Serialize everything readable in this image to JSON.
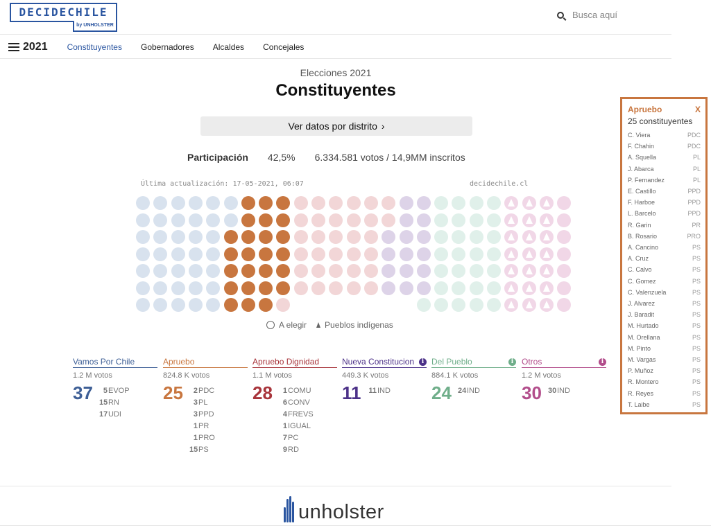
{
  "header": {
    "logo_main": "DECIDECHILE",
    "logo_sub": "by UNHOLSTER",
    "search_placeholder": "Busca aquí"
  },
  "nav": {
    "year": "2021",
    "tabs": [
      {
        "label": "Constituyentes",
        "active": true
      },
      {
        "label": "Gobernadores",
        "active": false
      },
      {
        "label": "Alcaldes",
        "active": false
      },
      {
        "label": "Concejales",
        "active": false
      }
    ]
  },
  "main": {
    "subtitle": "Elecciones 2021",
    "title": "Constituyentes",
    "district_button": "Ver datos por distrito",
    "participation_label": "Participación",
    "participation_pct": "42,5%",
    "participation_votes": "6.334.581 votos / 14,9MM inscritos",
    "updated": "Última actualización: 17-05-2021, 06:07",
    "site": "decidechile.cl",
    "legend_elect": "A elegir",
    "legend_indigenous": "Pueblos indígenas"
  },
  "colors": {
    "vamos_light": "#d8e2ee",
    "apruebo": "#c8763f",
    "dignidad_light": "#f2d6d7",
    "nueva_light": "#ddd3e8",
    "pueblo_light": "#e0f0ea",
    "otros_light": "#f1d7e7",
    "vamos": "#3e5f96",
    "apruebo_dark": "#c8763f",
    "dignidad": "#a8343b",
    "nueva": "#4c3188",
    "pueblo": "#6fae8a",
    "otros": "#b24d8b"
  },
  "coalitions": [
    {
      "name": "Vamos Por Chile",
      "votes": "1.2 M votos",
      "seats": "37",
      "color": "#3e5f96",
      "info": false,
      "parties": [
        {
          "n": "5",
          "p": "EVOP"
        },
        {
          "n": "15",
          "p": "RN"
        },
        {
          "n": "17",
          "p": "UDI"
        }
      ]
    },
    {
      "name": "Apruebo",
      "votes": "824.8 K votos",
      "seats": "25",
      "color": "#c8763f",
      "info": false,
      "parties": [
        {
          "n": "2",
          "p": "PDC"
        },
        {
          "n": "3",
          "p": "PL"
        },
        {
          "n": "3",
          "p": "PPD"
        },
        {
          "n": "1",
          "p": "PR"
        },
        {
          "n": "1",
          "p": "PRO"
        },
        {
          "n": "15",
          "p": "PS"
        }
      ]
    },
    {
      "name": "Apruebo Dignidad",
      "votes": "1.1 M votos",
      "seats": "28",
      "color": "#a8343b",
      "info": false,
      "parties": [
        {
          "n": "1",
          "p": "COMU"
        },
        {
          "n": "6",
          "p": "CONV"
        },
        {
          "n": "4",
          "p": "FREVS"
        },
        {
          "n": "1",
          "p": "IGUAL"
        },
        {
          "n": "7",
          "p": "PC"
        },
        {
          "n": "9",
          "p": "RD"
        }
      ]
    },
    {
      "name": "Nueva Constitucion",
      "votes": "449.3 K votos",
      "seats": "11",
      "color": "#4c3188",
      "info": true,
      "parties": [
        {
          "n": "11",
          "p": "IND"
        }
      ]
    },
    {
      "name": "Del Pueblo",
      "votes": "884.1 K votos",
      "seats": "24",
      "color": "#6fae8a",
      "info": true,
      "parties": [
        {
          "n": "24",
          "p": "IND"
        }
      ]
    },
    {
      "name": "Otros",
      "votes": "1.2 M votos",
      "seats": "30",
      "color": "#b24d8b",
      "info": true,
      "parties": [
        {
          "n": "30",
          "p": "IND"
        }
      ]
    }
  ],
  "panel": {
    "title": "Apruebo",
    "close": "X",
    "count": "25 constituyentes",
    "members": [
      {
        "name": "C. Viera",
        "party": "PDC"
      },
      {
        "name": "F. Chahin",
        "party": "PDC"
      },
      {
        "name": "A. Squella",
        "party": "PL"
      },
      {
        "name": "J. Abarca",
        "party": "PL"
      },
      {
        "name": "P. Fernandez",
        "party": "PL"
      },
      {
        "name": "E. Castillo",
        "party": "PPD"
      },
      {
        "name": "F. Harboe",
        "party": "PPD"
      },
      {
        "name": "L. Barcelo",
        "party": "PPD"
      },
      {
        "name": "R. Garin",
        "party": "PR"
      },
      {
        "name": "B. Rosario",
        "party": "PRO"
      },
      {
        "name": "A. Cancino",
        "party": "PS"
      },
      {
        "name": "A. Cruz",
        "party": "PS"
      },
      {
        "name": "C. Calvo",
        "party": "PS"
      },
      {
        "name": "C. Gomez",
        "party": "PS"
      },
      {
        "name": "C. Valenzuela",
        "party": "PS"
      },
      {
        "name": "J. Alvarez",
        "party": "PS"
      },
      {
        "name": "J. Baradit",
        "party": "PS"
      },
      {
        "name": "M. Hurtado",
        "party": "PS"
      },
      {
        "name": "M. Orellana",
        "party": "PS"
      },
      {
        "name": "M. Pinto",
        "party": "PS"
      },
      {
        "name": "M. Vargas",
        "party": "PS"
      },
      {
        "name": "P. Muñoz",
        "party": "PS"
      },
      {
        "name": "R. Montero",
        "party": "PS"
      },
      {
        "name": "R. Reyes",
        "party": "PS"
      },
      {
        "name": "T. Laibe",
        "party": "PS"
      }
    ]
  },
  "seat_grid": {
    "rows": [
      "vvvvvvaaaddddddnnppppiiio",
      "vvvvvvaaaddddddnnppppiiio",
      "vvvvvaaaadddddnnnppppiiio",
      "vvvvvaaaadddddnnnppppiiio",
      "vvvvvaaaadddddnnnppppiiio",
      "vvvvvaaaadddddnnnppppiiio",
      "vvvvvaaad_______pppppiiio"
    ]
  },
  "footer": {
    "brand": "unholster"
  }
}
